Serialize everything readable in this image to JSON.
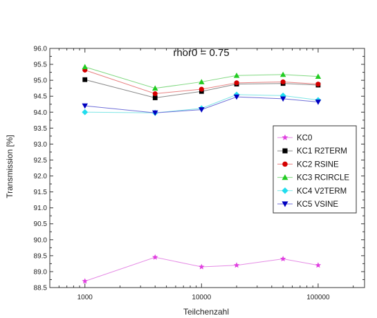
{
  "chart_data": {
    "type": "line",
    "annotation": "rhor0 = 0.75",
    "xlabel": "Teilchenzahl",
    "ylabel": "Transmission [%]",
    "xscale": "log",
    "xlim": [
      500,
      250000
    ],
    "ylim": [
      88.5,
      96.0
    ],
    "xticks": [
      1000,
      10000,
      100000
    ],
    "xtick_labels": [
      "1000",
      "10000",
      "100000"
    ],
    "yticks": [
      88.5,
      89.0,
      89.5,
      90.0,
      90.5,
      91.0,
      91.5,
      92.0,
      92.5,
      93.0,
      93.5,
      94.0,
      94.5,
      95.0,
      95.5,
      96.0
    ],
    "ytick_labels": [
      "88.5",
      "89.0",
      "89.5",
      "90.0",
      "90.5",
      "91.0",
      "91.5",
      "92.0",
      "92.5",
      "93.0",
      "93.5",
      "94.0",
      "94.5",
      "95.0",
      "95.5",
      "96.0"
    ],
    "grid": false,
    "legend_position": "right-middle",
    "x": [
      1000,
      4000,
      10000,
      20000,
      50000,
      100000
    ],
    "series": [
      {
        "name": "KC0",
        "marker": "star",
        "line_color": "#e58ae5",
        "marker_color": "#e040e0",
        "values": [
          88.7,
          89.45,
          89.15,
          89.2,
          89.4,
          89.2
        ]
      },
      {
        "name": "KC1 R2TERM",
        "marker": "square",
        "line_color": "#888888",
        "marker_color": "#000000",
        "values": [
          95.02,
          94.45,
          94.65,
          94.88,
          94.9,
          94.85
        ]
      },
      {
        "name": "KC2 RSINE",
        "marker": "circle",
        "line_color": "#e88080",
        "marker_color": "#d40000",
        "values": [
          95.32,
          94.58,
          94.72,
          94.92,
          94.95,
          94.88
        ]
      },
      {
        "name": "KC3 RCIRCLE",
        "marker": "triangle-up",
        "line_color": "#80d880",
        "marker_color": "#22cc22",
        "values": [
          95.42,
          94.75,
          94.95,
          95.15,
          95.18,
          95.12
        ]
      },
      {
        "name": "KC4 V2TERM",
        "marker": "diamond",
        "line_color": "#7fe6e6",
        "marker_color": "#22ddee",
        "values": [
          94.0,
          93.98,
          94.12,
          94.55,
          94.52,
          94.38
        ]
      },
      {
        "name": "KC5 VSINE",
        "marker": "triangle-down",
        "line_color": "#7070d8",
        "marker_color": "#0000c0",
        "values": [
          94.2,
          93.98,
          94.08,
          94.48,
          94.42,
          94.32
        ]
      }
    ]
  }
}
